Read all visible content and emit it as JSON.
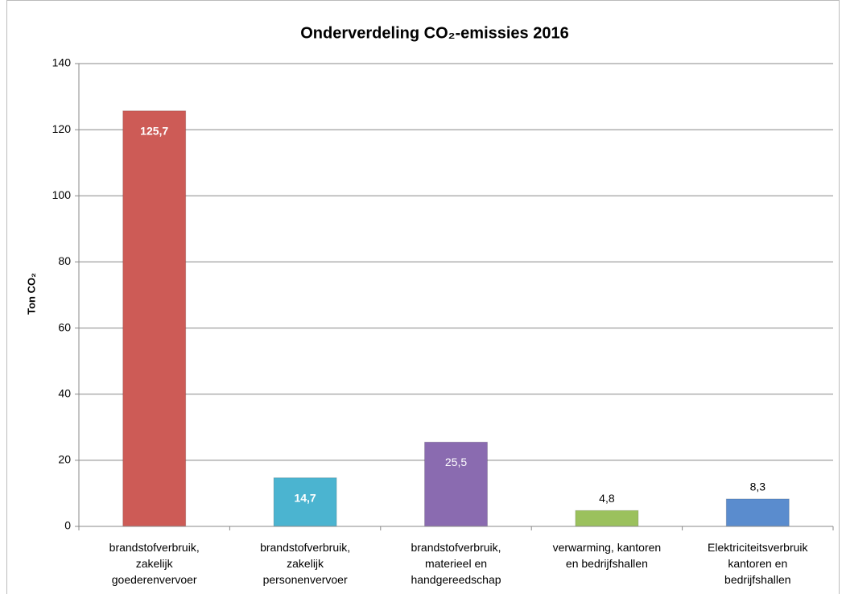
{
  "chart_data": {
    "type": "bar",
    "title": "Onderverdeling CO₂-emissies 2016",
    "y_label": "Ton CO₂",
    "categories": [
      "brandstofverbruik,\nzakelijk\ngoederenvervoer",
      "brandstofverbruik,\nzakelijk\npersonenvervoer",
      "brandstofverbruik,\nmaterieel en\nhandgereedschap",
      "verwarming, kantoren\nen bedrijfshallen",
      "Elektriciteitsverbruik\nkantoren en\nbedrijfshallen"
    ],
    "values": [
      125.7,
      14.7,
      25.5,
      4.8,
      8.3
    ],
    "value_labels": [
      "125,7",
      "14,7",
      "25,5",
      "4,8",
      "8,3"
    ],
    "colors": [
      "#cd5b56",
      "#4bb4d0",
      "#8a6bb0",
      "#9bc15d",
      "#5a8cce"
    ],
    "ylim": [
      0,
      140
    ],
    "yticks": [
      0,
      20,
      40,
      60,
      80,
      100,
      120,
      140
    ],
    "grid": true
  }
}
